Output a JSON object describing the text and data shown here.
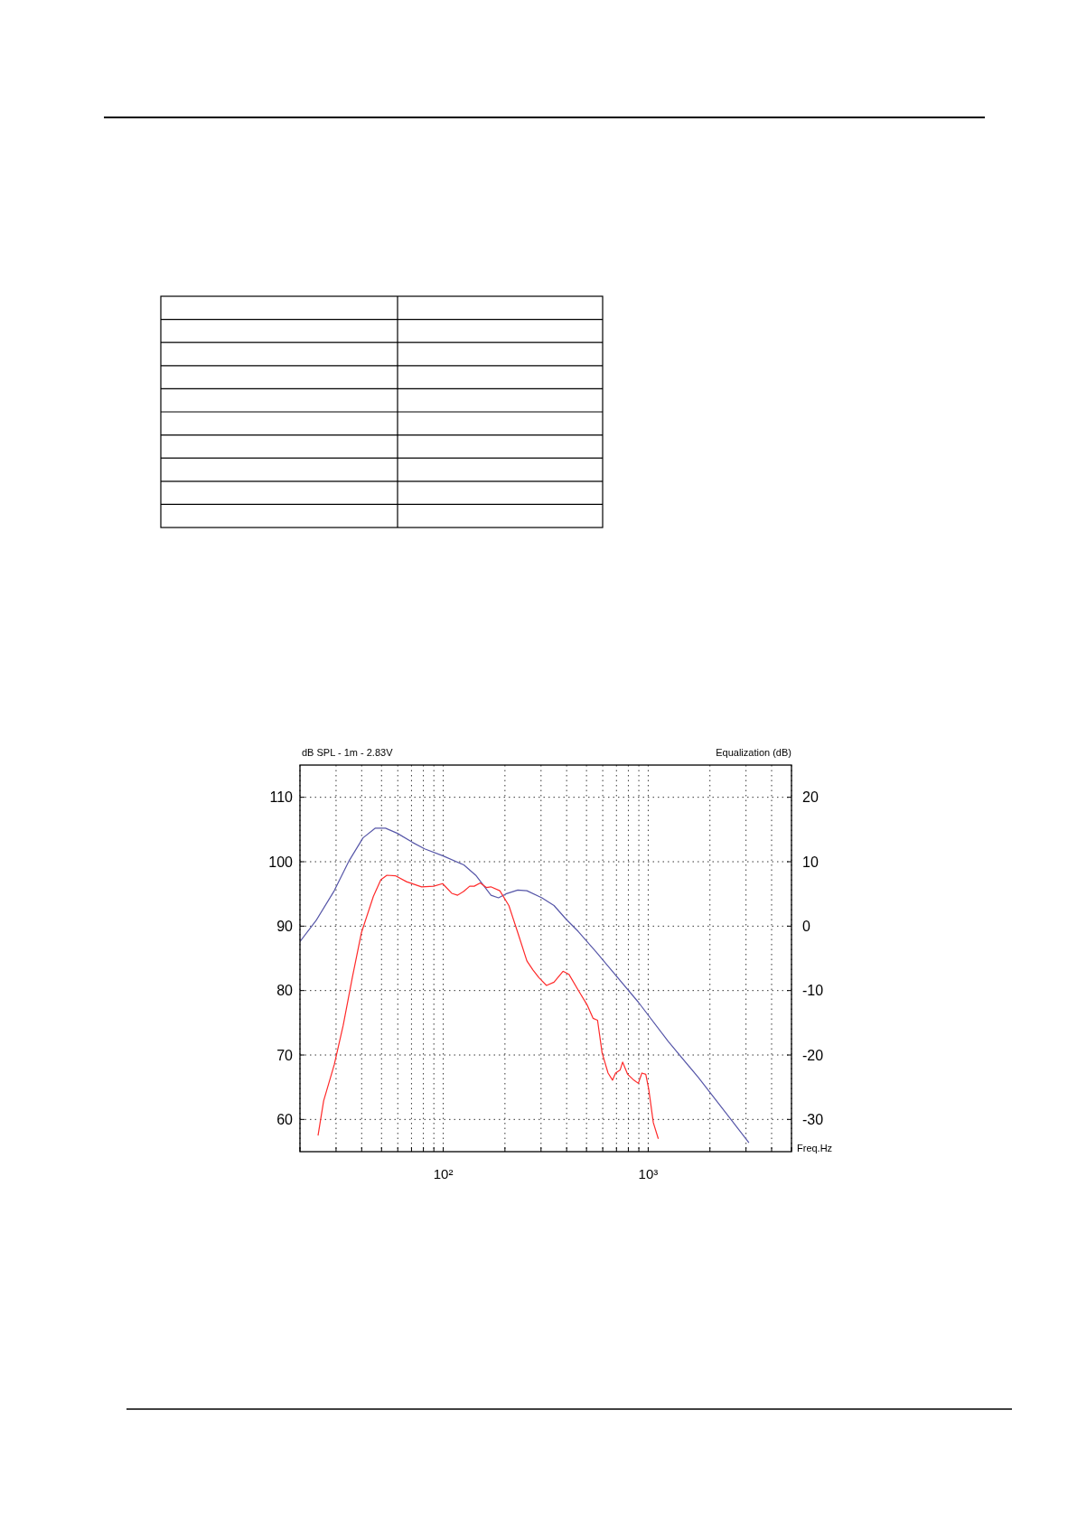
{
  "chart_data": {
    "type": "line",
    "ylabel": "dB SPL - 1m - 2.83V",
    "y2label": "Equalization (dB)",
    "xlabel": "Freq.Hz",
    "log": "x",
    "grid": true,
    "marker": "none",
    "line_style": "solid",
    "xlim": [
      20,
      5000
    ],
    "ylim": [
      55,
      115
    ],
    "y2lim": [
      -35,
      25
    ],
    "xticks": [
      {
        "value": 20,
        "label": null
      },
      {
        "value": 30,
        "label": null
      },
      {
        "value": 40,
        "label": null
      },
      {
        "value": 50,
        "label": null
      },
      {
        "value": 60,
        "label": null
      },
      {
        "value": 70,
        "label": null
      },
      {
        "value": 80,
        "label": null
      },
      {
        "value": 90,
        "label": null
      },
      {
        "value": 100,
        "label": "10²"
      },
      {
        "value": 200,
        "label": null
      },
      {
        "value": 300,
        "label": null
      },
      {
        "value": 400,
        "label": null
      },
      {
        "value": 500,
        "label": null
      },
      {
        "value": 600,
        "label": null
      },
      {
        "value": 700,
        "label": null
      },
      {
        "value": 800,
        "label": null
      },
      {
        "value": 900,
        "label": null
      },
      {
        "value": 1000,
        "label": "10³"
      },
      {
        "value": 2000,
        "label": null
      },
      {
        "value": 3000,
        "label": null
      },
      {
        "value": 4000,
        "label": null
      },
      {
        "value": 5000,
        "label": null
      }
    ],
    "yticks": [
      60,
      70,
      80,
      90,
      100,
      110
    ],
    "y2ticks": [
      -30,
      -20,
      -10,
      0,
      10,
      20
    ],
    "series": [
      {
        "color": "#5656a8",
        "x": [
          20,
          24,
          29.4,
          34.8,
          40.6,
          46.5,
          52.3,
          59.8,
          70.8,
          81.1,
          100,
          126,
          144,
          171,
          186,
          202,
          231,
          256,
          303,
          347,
          397,
          455,
          557,
          637,
          895,
          1254,
          1757,
          2465,
          3100
        ],
        "values": [
          87.6,
          90.9,
          95.5,
          100.2,
          103.7,
          105.2,
          105.2,
          104.4,
          103,
          102,
          100.9,
          99.5,
          97.9,
          94.8,
          94.4,
          95,
          95.6,
          95.5,
          94.4,
          93.2,
          91.1,
          89.2,
          86,
          83.8,
          78.2,
          72.1,
          66.5,
          60.5,
          56.4
        ]
      },
      {
        "color": "#ff2a2a",
        "x": [
          24.5,
          26.1,
          29.4,
          32.5,
          36,
          39.9,
          45.6,
          49.6,
          53.1,
          58.7,
          66.2,
          78.4,
          89.8,
          99.3,
          110,
          117.5,
          126,
          134.6,
          141.6,
          151.6,
          162.3,
          170.7,
          188.8,
          209,
          231,
          256,
          274,
          293,
          319,
          347,
          384,
          411,
          455,
          503,
          538,
          566,
          596,
          637,
          670,
          693,
          730,
          750,
          794,
          851,
          895,
          931,
          973,
          1006,
          1059,
          1120
        ],
        "values": [
          57.5,
          62.9,
          68.5,
          74.6,
          82,
          89,
          94.6,
          97.2,
          97.9,
          97.8,
          96.9,
          96.1,
          96.2,
          96.6,
          95.1,
          94.8,
          95.4,
          96.2,
          96.2,
          96.7,
          96,
          96.1,
          95.5,
          93.2,
          89,
          84.6,
          83.2,
          82,
          80.8,
          81.3,
          83,
          82.5,
          80.1,
          77.8,
          75.7,
          75.4,
          70.3,
          67.2,
          66.1,
          67.2,
          67.7,
          68.9,
          67,
          66.1,
          65.6,
          67.2,
          67,
          64.7,
          59.5,
          57
        ]
      }
    ]
  }
}
